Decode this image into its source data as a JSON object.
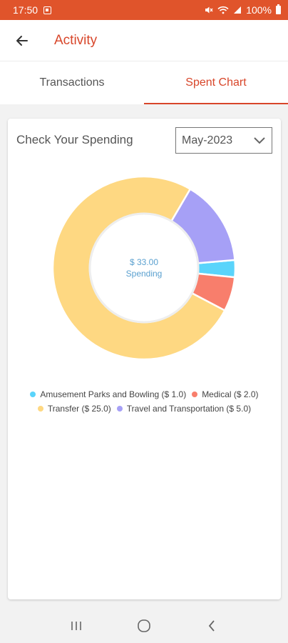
{
  "status_bar": {
    "time": "17:50",
    "battery": "100%"
  },
  "header": {
    "title": "Activity"
  },
  "tabs": [
    {
      "label": "Transactions"
    },
    {
      "label": "Spent Chart"
    }
  ],
  "card": {
    "title": "Check Your Spending",
    "month": "May-2023"
  },
  "chart_data": {
    "type": "pie",
    "center_amount": "$ 33.00",
    "center_label": "Spending",
    "slices": [
      {
        "label": "Amusement Parks and Bowling ($ 1.0)",
        "value": 1.0,
        "color": "#5ad4fb"
      },
      {
        "label": "Medical ($ 2.0)",
        "value": 2.0,
        "color": "#f87e6c"
      },
      {
        "label": "Transfer ($ 25.0)",
        "value": 25.0,
        "color": "#fed882"
      },
      {
        "label": "Travel and Transportation ($ 5.0)",
        "value": 5.0,
        "color": "#a6a0f6"
      }
    ]
  }
}
